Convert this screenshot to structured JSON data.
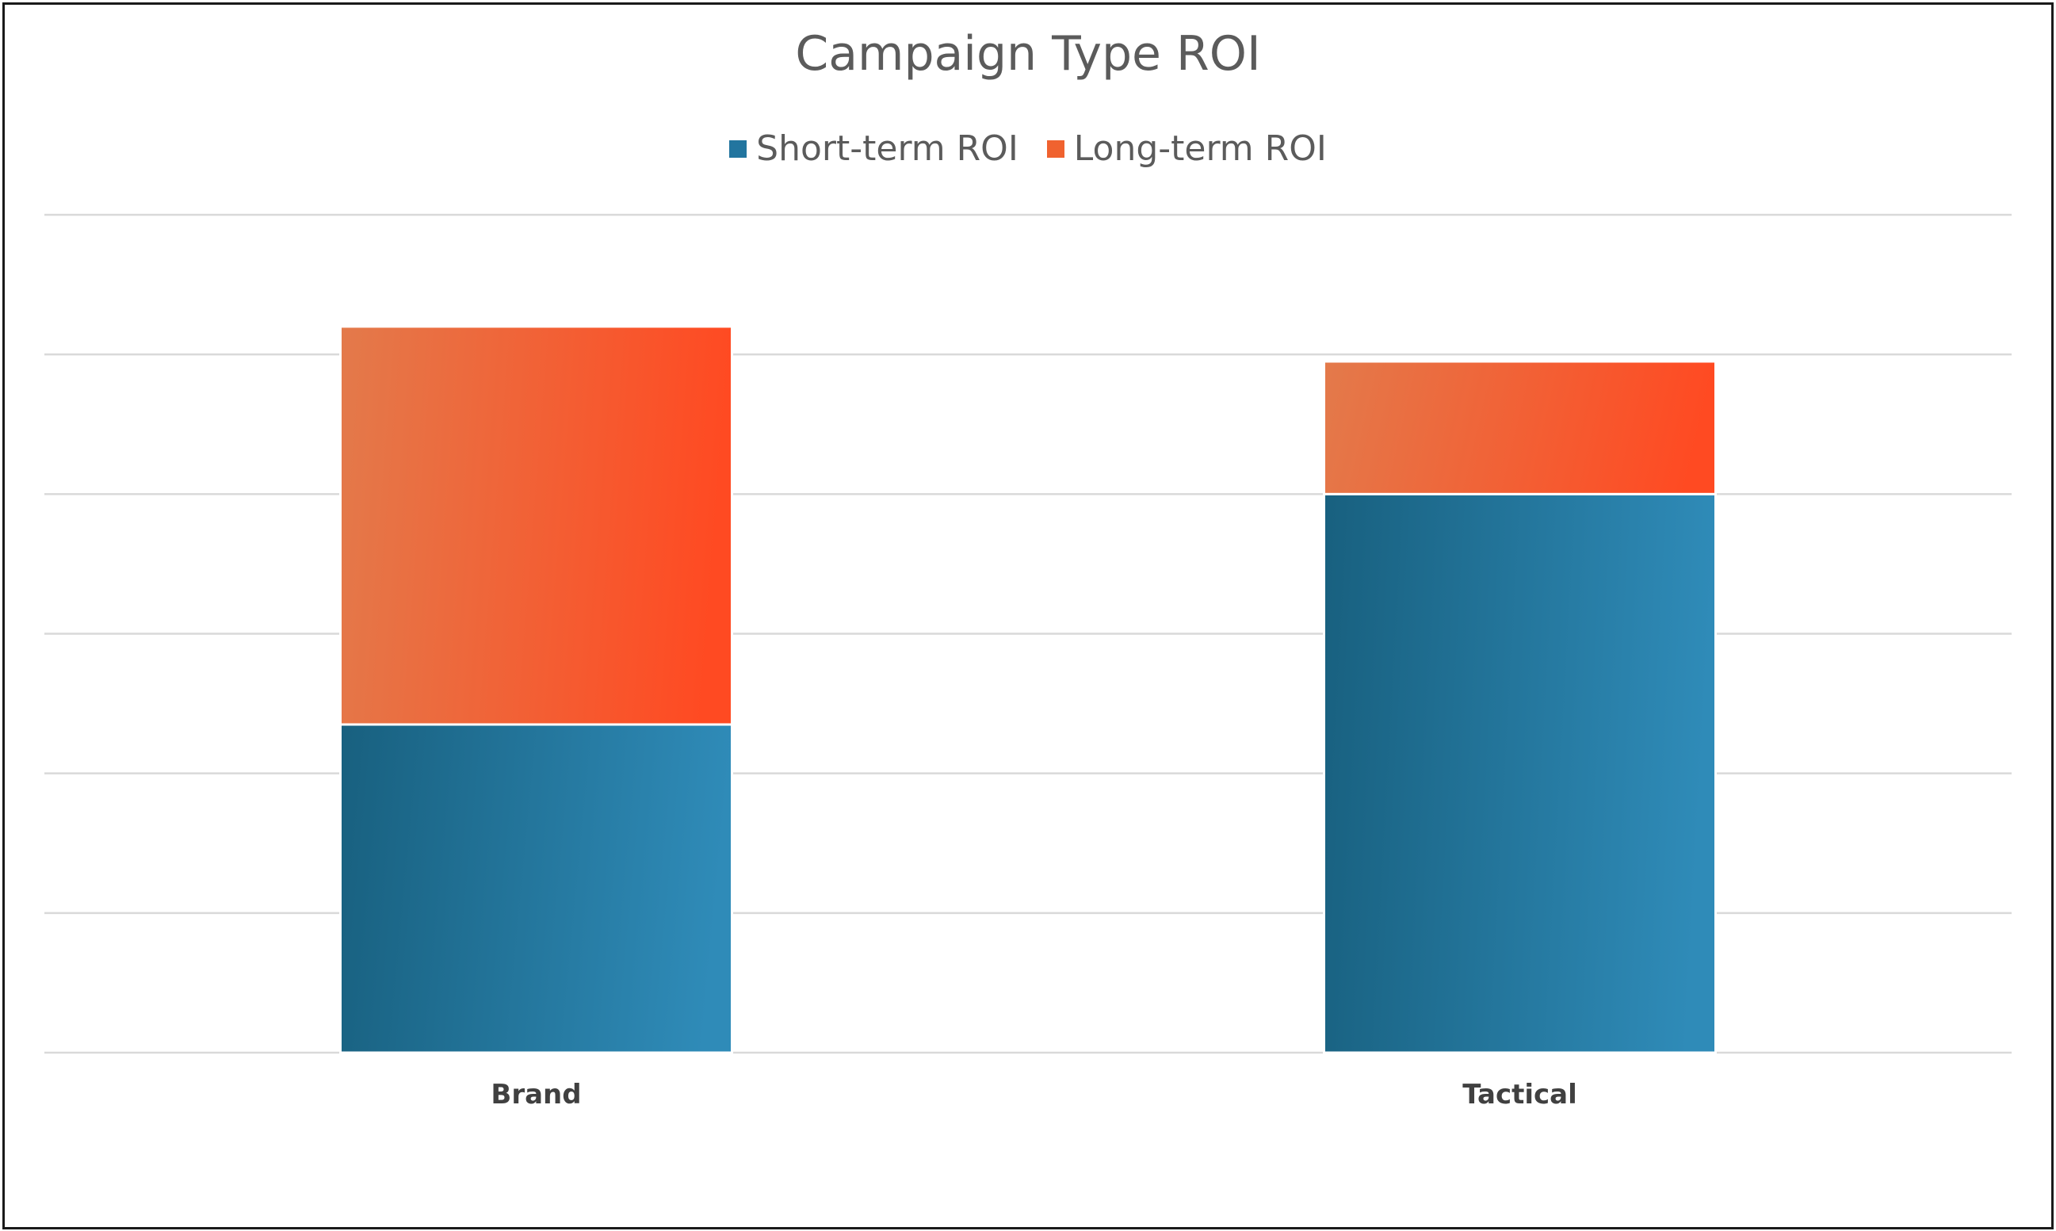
{
  "chart_data": {
    "type": "bar",
    "stacked": true,
    "title": "Campaign Type ROI",
    "categories": [
      "Brand",
      "Tactical"
    ],
    "series": [
      {
        "name": "Short-term ROI",
        "values": [
          2.35,
          4.0
        ],
        "color": "#22759f"
      },
      {
        "name": "Long-term ROI",
        "values": [
          2.85,
          0.95
        ],
        "color": "#f0622f"
      }
    ],
    "ylim": [
      0,
      6
    ],
    "grid": true,
    "legend_position": "top",
    "xlabel": "",
    "ylabel": ""
  }
}
